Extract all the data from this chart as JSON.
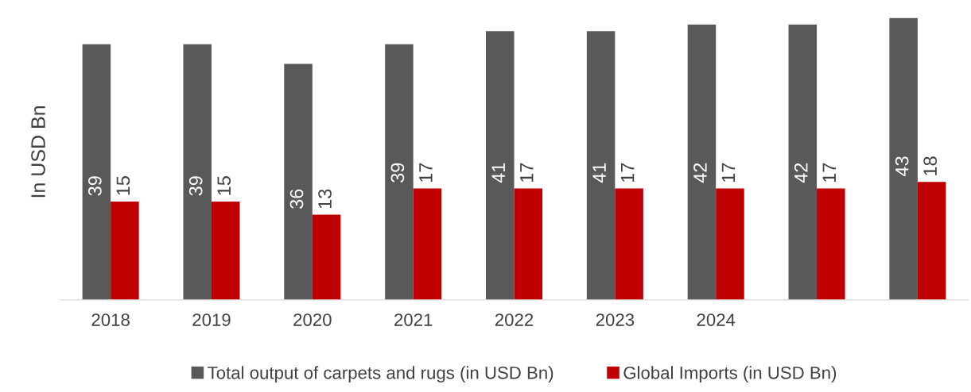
{
  "chart_data": {
    "type": "bar",
    "ylabel": "In USD Bn",
    "categories": [
      "2018",
      "2019",
      "2020",
      "2021",
      "2022",
      "2023",
      "2024",
      null,
      null
    ],
    "series": [
      {
        "name": "Total output of carpets and rugs (in USD Bn)",
        "color": "#595959",
        "values": [
          39,
          39,
          36,
          39,
          41,
          41,
          42,
          42,
          43
        ]
      },
      {
        "name": "Global Imports (in USD Bn)",
        "color": "#c00000",
        "values": [
          15,
          15,
          13,
          17,
          17,
          17,
          17,
          17,
          18
        ]
      }
    ],
    "data_labels": true,
    "grid": false,
    "legend": "bottom"
  }
}
